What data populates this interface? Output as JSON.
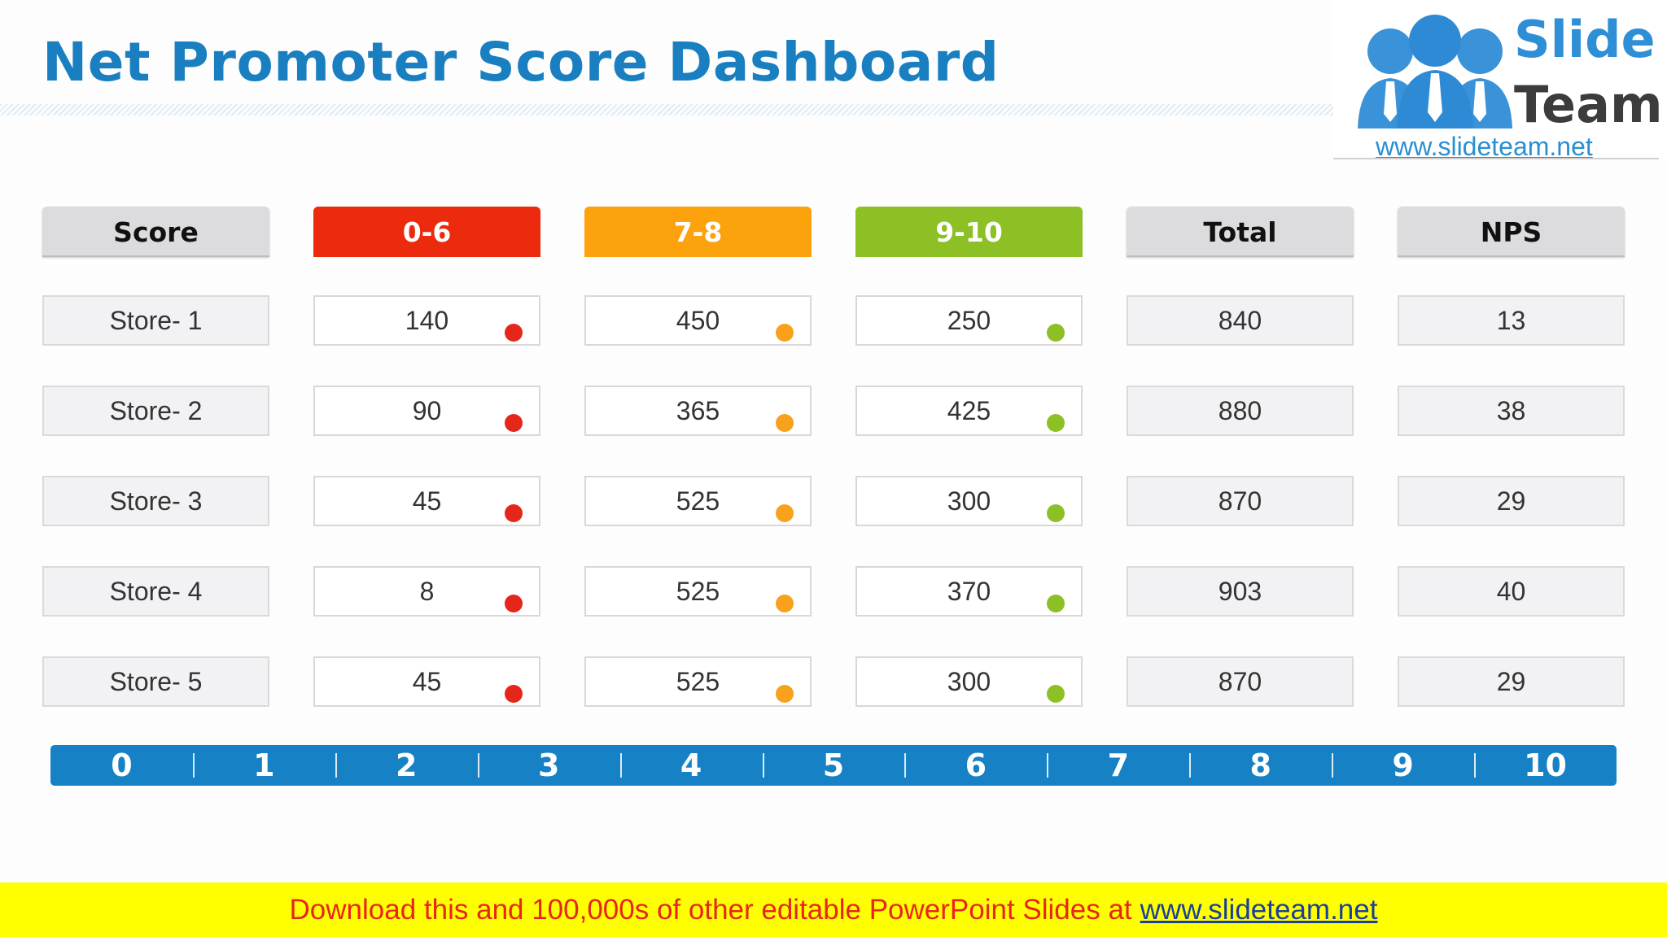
{
  "title": "Net Promoter Score Dashboard",
  "logo": {
    "word1": "Slide",
    "word2": "Team",
    "url": "www.slideteam.net"
  },
  "headers": [
    "Score",
    "0-6",
    "7-8",
    "9-10",
    "Total",
    "NPS"
  ],
  "colors": {
    "detractor": "#ec2a0d",
    "passive": "#fca20c",
    "promoter": "#8cc025",
    "scale": "#1681c5",
    "title": "#1a7fc1"
  },
  "rows": [
    {
      "store": "Store- 1",
      "detractors": "140",
      "passives": "450",
      "promoters": "250",
      "total": "840",
      "nps": "13"
    },
    {
      "store": "Store- 2",
      "detractors": "90",
      "passives": "365",
      "promoters": "425",
      "total": "880",
      "nps": "38"
    },
    {
      "store": "Store- 3",
      "detractors": "45",
      "passives": "525",
      "promoters": "300",
      "total": "870",
      "nps": "29"
    },
    {
      "store": "Store- 4",
      "detractors": "8",
      "passives": "525",
      "promoters": "370",
      "total": "903",
      "nps": "40"
    },
    {
      "store": "Store- 5",
      "detractors": "45",
      "passives": "525",
      "promoters": "300",
      "total": "870",
      "nps": "29"
    }
  ],
  "scale": [
    "0",
    "1",
    "2",
    "3",
    "4",
    "5",
    "6",
    "7",
    "8",
    "9",
    "10"
  ],
  "banner": {
    "text": "Download this and 100,000s of other editable PowerPoint Slides at",
    "link": "www.slideteam.net"
  }
}
